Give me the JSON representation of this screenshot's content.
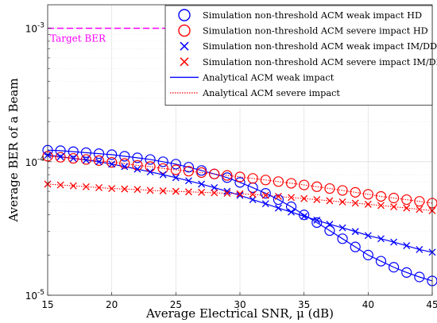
{
  "chart_data": {
    "type": "line",
    "xlabel": "Average Electrical SNR, μ (dB)",
    "ylabel": "Average BER of a Beam",
    "xlim": [
      15,
      45
    ],
    "ylim": [
      1e-05,
      0.0015
    ],
    "yscale": "log",
    "grid": true,
    "legend_position": "top-right",
    "x_ticks": [
      "15",
      "20",
      "25",
      "30",
      "35",
      "40",
      "45"
    ],
    "y_ticks": [
      {
        "value": 1e-05,
        "base": "10",
        "exp": "-5"
      },
      {
        "value": 0.0001,
        "base": "10",
        "exp": "-4"
      },
      {
        "value": 0.001,
        "base": "10",
        "exp": "-3"
      }
    ],
    "target": {
      "label": "Target BER",
      "value": 0.001,
      "color": "#ff00ff"
    },
    "x": [
      15,
      16,
      17,
      18,
      19,
      20,
      21,
      22,
      23,
      24,
      25,
      26,
      27,
      28,
      29,
      30,
      31,
      32,
      33,
      34,
      35,
      36,
      37,
      38,
      39,
      40,
      41,
      42,
      43,
      44,
      45
    ],
    "series": [
      {
        "name": "Simulation non-threshold ACM weak impact HD",
        "color": "#0000ff",
        "marker": "circle",
        "line": "none",
        "values": [
          0.000122,
          0.000121,
          0.000119,
          0.000117,
          0.000115,
          0.000113,
          0.00011,
          0.000107,
          0.000104,
          0.0001,
          9.6e-05,
          9.1e-05,
          8.6e-05,
          8.1e-05,
          7.6e-05,
          7e-05,
          6.4e-05,
          5.8e-05,
          5.2e-05,
          4.6e-05,
          4e-05,
          3.5e-05,
          3.05e-05,
          2.65e-05,
          2.3e-05,
          2e-05,
          1.8e-05,
          1.62e-05,
          1.48e-05,
          1.37e-05,
          1.28e-05
        ]
      },
      {
        "name": "Simulation non-threshold ACM severe impact HD",
        "color": "#ff0000",
        "marker": "circle",
        "line": "none",
        "values": [
          0.00011,
          0.000108,
          0.000106,
          0.000104,
          0.000102,
          9.9e-05,
          9.7e-05,
          9.4e-05,
          9.2e-05,
          8.9e-05,
          8.7e-05,
          8.5e-05,
          8.3e-05,
          8.1e-05,
          7.9e-05,
          7.7e-05,
          7.5e-05,
          7.3e-05,
          7.1e-05,
          6.9e-05,
          6.7e-05,
          6.5e-05,
          6.3e-05,
          6.1e-05,
          5.9e-05,
          5.7e-05,
          5.5e-05,
          5.35e-05,
          5.2e-05,
          5.05e-05,
          4.9e-05
        ]
      },
      {
        "name": "Simulation non-threshold ACM weak impact IM/DD",
        "color": "#0000ff",
        "marker": "x",
        "line": "none",
        "values": [
          0.000112,
          0.000109,
          0.000106,
          0.000103,
          0.0001,
          9.6e-05,
          9.2e-05,
          8.8e-05,
          8.4e-05,
          8e-05,
          7.6e-05,
          7.2e-05,
          6.8e-05,
          6.4e-05,
          6e-05,
          5.6e-05,
          5.2e-05,
          4.85e-05,
          4.5e-05,
          4.2e-05,
          3.9e-05,
          3.65e-05,
          3.4e-05,
          3.2e-05,
          3e-05,
          2.8e-05,
          2.65e-05,
          2.5e-05,
          2.35e-05,
          2.2e-05,
          2.1e-05
        ]
      },
      {
        "name": "Simulation non-threshold ACM severe impact IM/DD",
        "color": "#ff0000",
        "marker": "x",
        "line": "none",
        "values": [
          6.8e-05,
          6.7e-05,
          6.6e-05,
          6.5e-05,
          6.4e-05,
          6.3e-05,
          6.25e-05,
          6.2e-05,
          6.1e-05,
          6.05e-05,
          6e-05,
          5.95e-05,
          5.9e-05,
          5.85e-05,
          5.8e-05,
          5.75e-05,
          5.7e-05,
          5.6e-05,
          5.5e-05,
          5.4e-05,
          5.3e-05,
          5.2e-05,
          5.1e-05,
          5e-05,
          4.9e-05,
          4.8e-05,
          4.7e-05,
          4.6e-05,
          4.5e-05,
          4.4e-05,
          4.3e-05
        ]
      },
      {
        "name": "Analytical ACM weak impact",
        "color": "#0000ff",
        "marker": "none",
        "line": "solid",
        "pair": [
          0,
          2
        ]
      },
      {
        "name": "Analytical ACM severe impact",
        "color": "#ff0000",
        "marker": "none",
        "line": "dotted",
        "pair": [
          1,
          3
        ]
      }
    ]
  }
}
